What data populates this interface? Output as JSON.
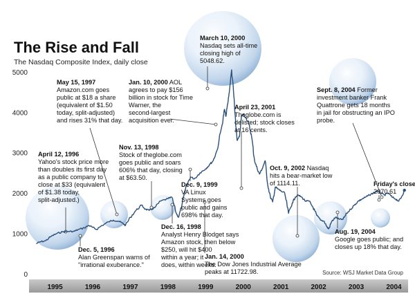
{
  "title": "The Rise and Fall",
  "subtitle": "The Nasdaq Composite Index, daily close",
  "source": "Source: WSJ Market Data Group",
  "watermark": "",
  "chart_data": {
    "type": "line",
    "x_is_year": true,
    "ylim": [
      0,
      5100
    ],
    "xlim": [
      1994.92,
      2004.84
    ],
    "y_ticks": [
      "0",
      "1000",
      "2000",
      "3000",
      "4000",
      "5000"
    ],
    "y_tick_values": [
      0,
      1000,
      2000,
      3000,
      4000,
      5000
    ],
    "x_ticks": [
      "1995",
      "1996",
      "1997",
      "1998",
      "1999",
      "2000",
      "2001",
      "2002",
      "2003",
      "2004"
    ],
    "x_tick_values": [
      1995.5,
      1996.5,
      1997.5,
      1998.5,
      1999.5,
      2000.5,
      2001.5,
      2002.5,
      2003.5,
      2004.5
    ],
    "grid": false,
    "legend": "none",
    "series": [
      {
        "color": "#2a4f7a",
        "x": [
          1995.0,
          1995.1,
          1995.25,
          1995.4,
          1995.55,
          1995.7,
          1995.85,
          1996.0,
          1996.1,
          1996.28,
          1996.4,
          1996.5,
          1996.6,
          1996.75,
          1996.93,
          1997.05,
          1997.2,
          1997.3,
          1997.37,
          1997.5,
          1997.65,
          1997.8,
          1997.9,
          1998.0,
          1998.15,
          1998.3,
          1998.5,
          1998.6,
          1998.72,
          1998.78,
          1998.87,
          1999.0,
          1999.1,
          1999.2,
          1999.35,
          1999.5,
          1999.6,
          1999.7,
          1999.8,
          1999.94,
          2000.0,
          2000.04,
          2000.1,
          2000.14,
          2000.19,
          2000.25,
          2000.3,
          2000.34,
          2000.4,
          2000.45,
          2000.5,
          2000.58,
          2000.65,
          2000.72,
          2000.8,
          2000.87,
          2000.93,
          2001.0,
          2001.08,
          2001.15,
          2001.22,
          2001.28,
          2001.35,
          2001.42,
          2001.5,
          2001.6,
          2001.7,
          2001.8,
          2001.88,
          2001.95,
          2002.05,
          2002.15,
          2002.25,
          2002.35,
          2002.45,
          2002.55,
          2002.65,
          2002.73,
          2002.77,
          2002.85,
          2002.95,
          2003.05,
          2003.15,
          2003.25,
          2003.35,
          2003.45,
          2003.55,
          2003.65,
          2003.75,
          2003.85,
          2003.95,
          2004.05,
          2004.15,
          2004.25,
          2004.35,
          2004.45,
          2004.55,
          2004.63,
          2004.7,
          2004.78
        ],
        "values": [
          750,
          790,
          820,
          930,
          1000,
          1040,
          1050,
          1050,
          1090,
          1140,
          1200,
          1150,
          1100,
          1200,
          1290,
          1330,
          1300,
          1250,
          1200,
          1400,
          1570,
          1700,
          1600,
          1570,
          1640,
          1800,
          1860,
          1900,
          1500,
          1400,
          1700,
          2200,
          2400,
          2350,
          2500,
          2600,
          2700,
          2800,
          3050,
          3700,
          4069,
          3900,
          4300,
          4600,
          5048,
          4400,
          3650,
          3300,
          3400,
          3900,
          3950,
          3850,
          3700,
          3400,
          2800,
          2600,
          2470,
          2600,
          2800,
          2200,
          1900,
          1780,
          2150,
          2100,
          2050,
          2000,
          1500,
          1750,
          1900,
          1950,
          1900,
          1800,
          1800,
          1650,
          1450,
          1330,
          1300,
          1150,
          1114,
          1300,
          1400,
          1350,
          1350,
          1500,
          1600,
          1700,
          1800,
          1850,
          1900,
          1950,
          2000,
          2050,
          2000,
          1950,
          2000,
          1900,
          1850,
          1800,
          1900,
          2070
        ]
      }
    ],
    "annotations": [
      {
        "date": "May 15, 1997",
        "lines": [
          "Amazon.com goes",
          "public at $18 a share",
          "(equivalent of $1.50",
          "today, split-adjusted)",
          "and rises 31% that day."
        ]
      },
      {
        "date": "Jan. 10, 2000",
        "date_tail": "AOL",
        "lines": [
          "agrees to pay $156",
          "billion in stock for Time",
          "Warner, the",
          "second-largest",
          "acquisition ever."
        ]
      },
      {
        "date": "March 10, 2000",
        "lines": [
          "Nasdaq sets all-time",
          "closing high of",
          "5048.62."
        ]
      },
      {
        "date": "April 23, 2001",
        "lines": [
          "Theglobe.com is",
          "delisted; stock closes",
          "at 16 cents."
        ]
      },
      {
        "date": "Sept. 8, 2004",
        "date_tail": "Former",
        "lines": [
          "investment banker Frank",
          "Quattrone gets 18 months",
          "in jail for obstructing an IPO",
          "probe."
        ]
      },
      {
        "date": "April 12, 1996",
        "lines": [
          "Yahoo's stock price more",
          "than doubles its first day",
          "as a public company to",
          "close at $33 (equivalent",
          "of $1.38 today,",
          "split-adjusted.)"
        ]
      },
      {
        "date": "Nov. 13, 1998",
        "lines": [
          "Stock of theglobe.com",
          "goes public and soars",
          "606% that day, closing",
          "at $63.50."
        ]
      },
      {
        "date": "Dec. 9, 1999",
        "lines": [
          "VA Linux",
          "Systems  goes",
          "public and gains",
          "698% that day."
        ]
      },
      {
        "date": "Oct. 9, 2002",
        "date_tail": "Nasdaq",
        "lines": [
          "hits a bear-market low",
          "of 1114.11."
        ]
      },
      {
        "date": "Friday's close:",
        "lines": [
          "2070.61"
        ]
      },
      {
        "date": "Dec. 16, 1998",
        "lines": [
          "Analyst Henry Blodget says",
          "Amazon stock, then below",
          "$250, will hit $400",
          "within a year; it",
          "does, within weeks."
        ]
      },
      {
        "date": "Dec. 5, 1996",
        "lines": [
          "Alan Greenspan warns of",
          "\"irrational exuberance.\""
        ]
      },
      {
        "date": "Jan. 14, 2000",
        "lines": [
          "The Dow Jones Industrial Average",
          "peaks at 11722.98."
        ]
      },
      {
        "date": "Aug. 19, 2004",
        "lines": [
          "Google goes public; and",
          "closes up 18% that day."
        ]
      }
    ]
  }
}
